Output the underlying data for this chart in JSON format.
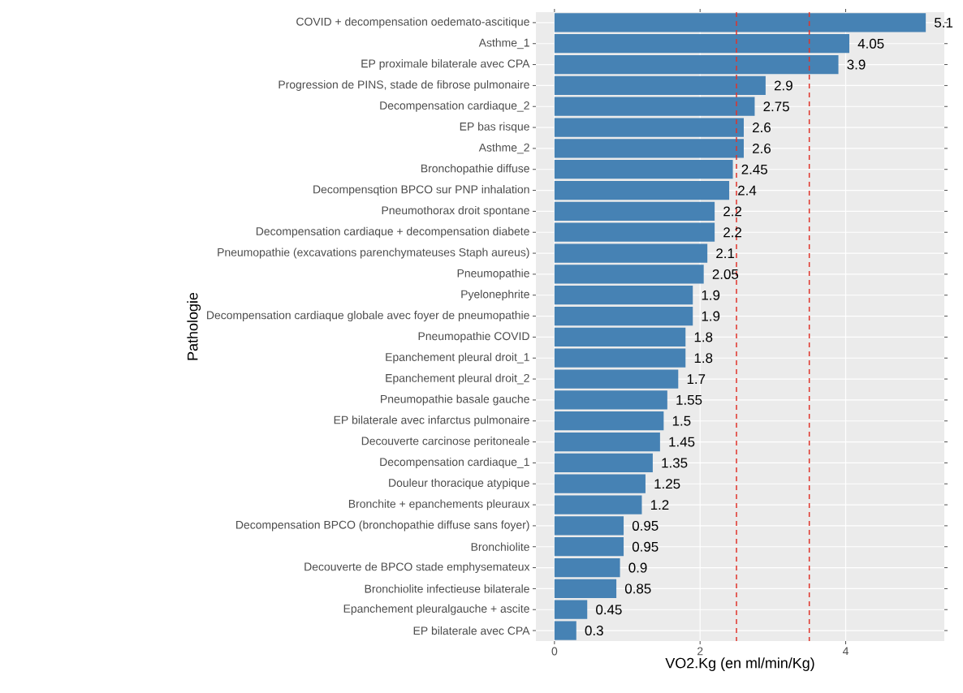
{
  "chart_data": {
    "type": "bar",
    "orientation": "horizontal",
    "xlabel": "VO2.Kg (en ml/min/Kg)",
    "ylabel": "Pathologie",
    "categories": [
      "COVID + decompensation oedemato-ascitique",
      "Asthme_1",
      "EP proximale bilaterale avec CPA",
      "Progression de PINS, stade de fibrose pulmonaire",
      "Decompensation cardiaque_2",
      "EP bas risque",
      "Asthme_2",
      "Bronchopathie diffuse",
      "Decompensqtion BPCO sur PNP inhalation",
      "Pneumothorax droit spontane",
      "Decompensation cardiaque + decompensation diabete",
      "Pneumopathie (excavations parenchymateuses Staph aureus)",
      "Pneumopathie",
      "Pyelonephrite",
      "Decompensation cardiaque globale avec foyer de pneumopathie",
      "Pneumopathie COVID",
      "Epanchement pleural droit_1",
      "Epanchement pleural droit_2",
      "Pneumopathie basale gauche",
      "EP bilaterale avec infarctus pulmonaire",
      "Decouverte carcinose peritoneale",
      "Decompensation cardiaque_1",
      "Douleur thoracique atypique",
      "Bronchite + epanchements pleuraux",
      "Decompensation BPCO (bronchopathie diffuse sans foyer)",
      "Bronchiolite",
      "Decouverte de BPCO stade emphysemateux",
      "Bronchiolite infectieuse bilaterale",
      "Epanchement pleuralgauche + ascite",
      "EP bilaterale avec CPA"
    ],
    "values": [
      5.1,
      4.05,
      3.9,
      2.9,
      2.75,
      2.6,
      2.6,
      2.45,
      2.4,
      2.2,
      2.2,
      2.1,
      2.05,
      1.9,
      1.9,
      1.8,
      1.8,
      1.7,
      1.55,
      1.5,
      1.45,
      1.35,
      1.25,
      1.2,
      0.95,
      0.95,
      0.9,
      0.85,
      0.45,
      0.3
    ],
    "color": "#4682b4",
    "data_labels": true,
    "xlim": [
      -0.255,
      5.355
    ],
    "xticks": [
      0,
      2,
      4
    ],
    "grid": true,
    "ref_lines": [
      {
        "axis": "x",
        "value": 2.5,
        "color": "#e0342b",
        "line_style": "dashed"
      },
      {
        "axis": "x",
        "value": 3.5,
        "color": "#e0342b",
        "line_style": "dashed"
      }
    ]
  }
}
